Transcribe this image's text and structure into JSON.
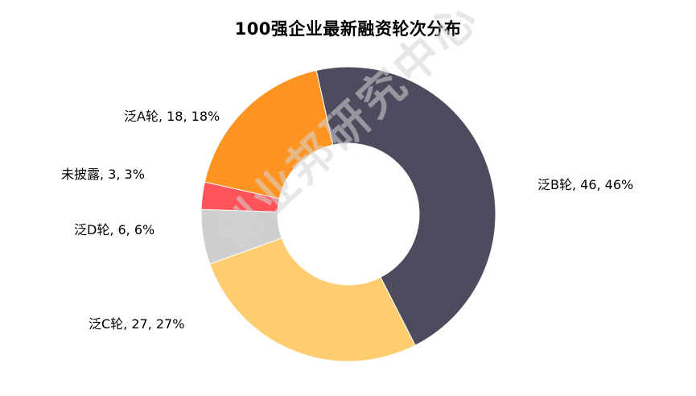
{
  "chart_data": {
    "type": "pie",
    "title": "100强企业最新融资轮次分布",
    "categories": [
      "泛B轮",
      "泛C轮",
      "泛D轮",
      "未披露",
      "泛A轮"
    ],
    "values": [
      46,
      27,
      6,
      3,
      18
    ],
    "percents": [
      "46%",
      "27%",
      "6%",
      "3%",
      "18%"
    ],
    "colors": [
      "#4d4b5e",
      "#ffcc70",
      "#d0cfd0",
      "#ff5459",
      "#ff9423"
    ],
    "labels": [
      "泛B轮, 46, 46%",
      "泛C轮, 27, 27%",
      "泛D轮, 6, 6%",
      "未披露, 3, 3%",
      "泛A轮, 18, 18%"
    ],
    "donut": true
  },
  "watermark": "创业邦研究中心"
}
